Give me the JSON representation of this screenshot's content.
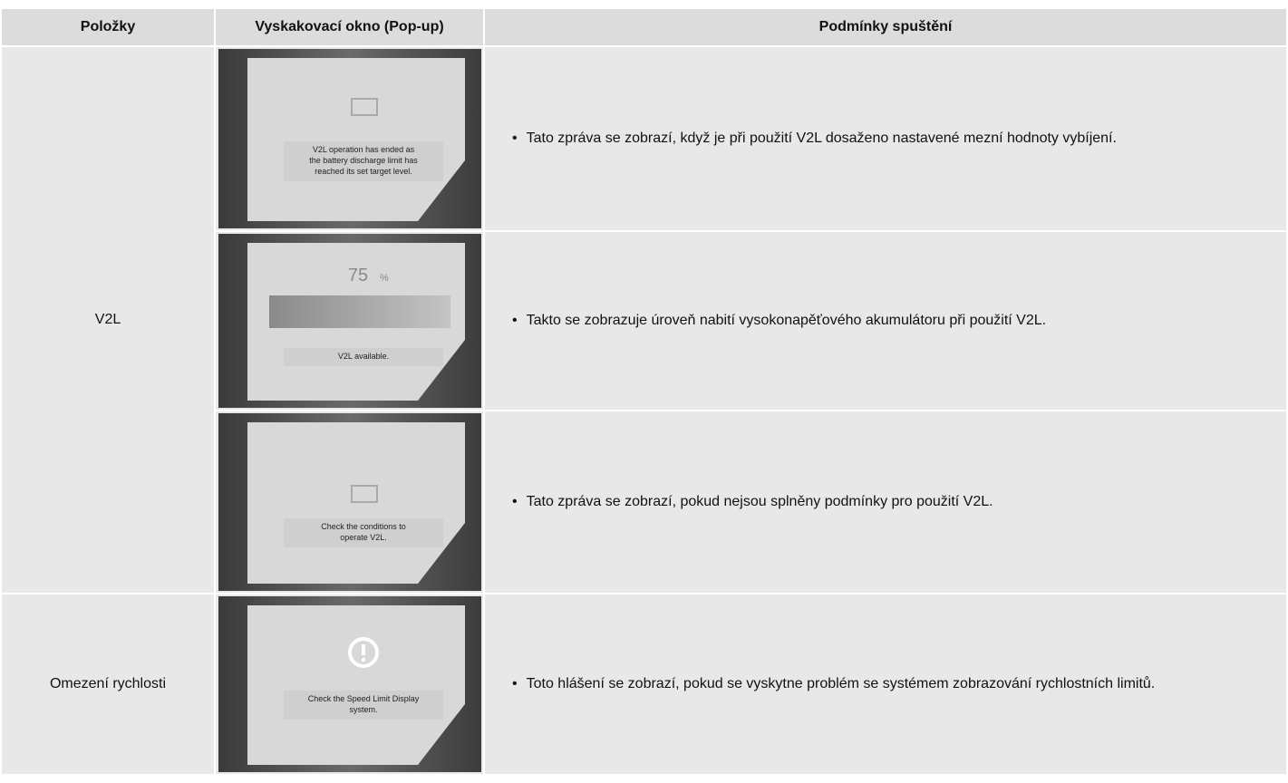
{
  "table": {
    "header": [
      "Položky",
      "Vyskakovací okno (Pop-up)",
      "Podmínky spuštění"
    ],
    "groups": [
      {
        "item": "V2L",
        "rows": [
          {
            "popup": {
              "lines": [
                "V2L operation has ended as",
                "the battery discharge limit has",
                "reached its set target level."
              ]
            },
            "condition": "Tato zpráva se zobrazí, když je při použití V2L dosaženo nastavené mezní hodnoty vybíjení."
          },
          {
            "popup": {
              "percent": "75",
              "unit": "%",
              "lines": [
                "V2L available."
              ]
            },
            "condition": "Takto se zobrazuje úroveň nabití vysokonapěťového akumulátoru při použití V2L."
          },
          {
            "popup": {
              "lines": [
                "Check the conditions to",
                "operate V2L."
              ]
            },
            "condition": "Tato zpráva se zobrazí, pokud nejsou splněny podmínky pro použití V2L."
          }
        ]
      },
      {
        "item": "Omezení rychlosti",
        "rows": [
          {
            "popup": {
              "lines": [
                "Check the Speed Limit Display",
                "system."
              ]
            },
            "condition": "Toto hlášení se zobrazí, pokud se vyskytne problém se systémem zobrazování rychlostních limitů."
          }
        ]
      }
    ]
  }
}
